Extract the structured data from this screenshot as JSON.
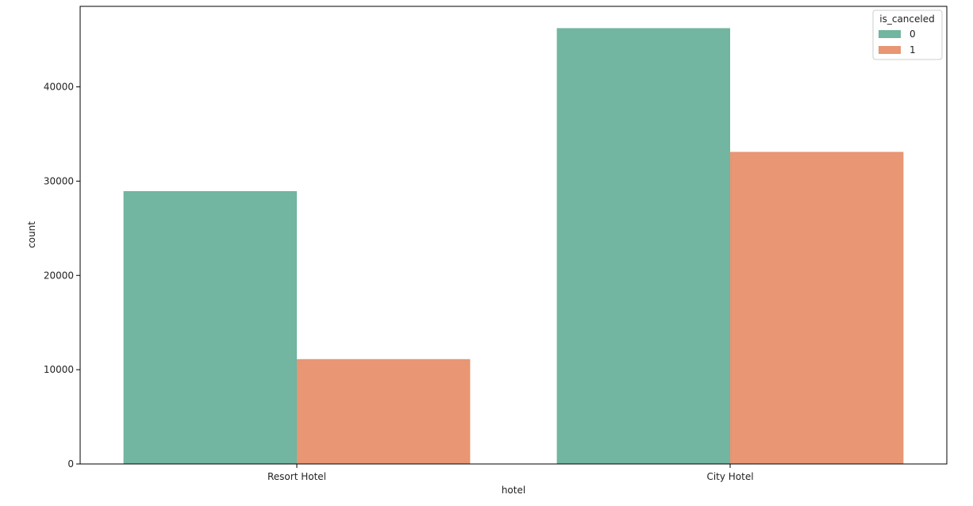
{
  "chart_data": {
    "type": "bar",
    "xlabel": "hotel",
    "ylabel": "count",
    "categories": [
      "Resort Hotel",
      "City Hotel"
    ],
    "series": [
      {
        "name": "0",
        "values": [
          28938,
          46228
        ],
        "color": "#72b5a0"
      },
      {
        "name": "1",
        "values": [
          11122,
          33102
        ],
        "color": "#e89673"
      }
    ],
    "ylim": [
      0,
      48540
    ],
    "yticks": [
      0,
      10000,
      20000,
      30000,
      40000
    ],
    "legend": {
      "title": "is_canceled",
      "position": "top-right"
    },
    "grid": false
  }
}
